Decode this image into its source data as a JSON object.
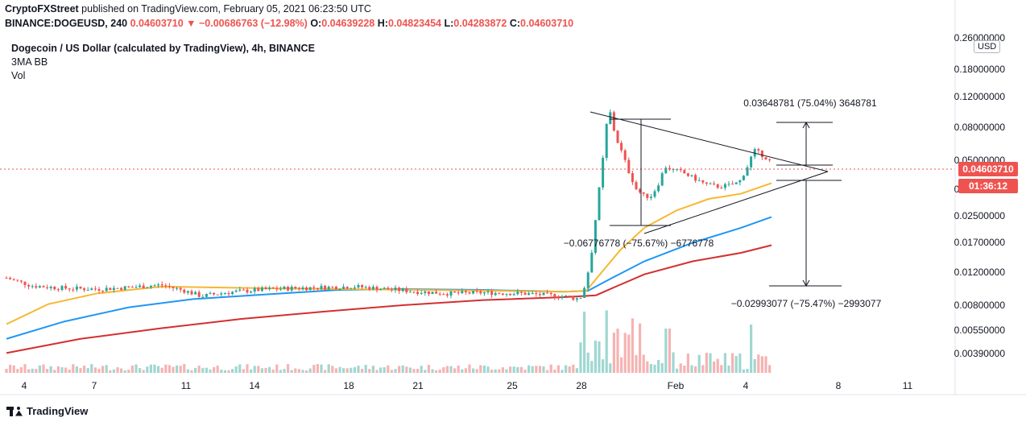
{
  "header": {
    "publisher": "CryptoFXStreet",
    "published_text": "published on TradingView.com, February 05, 2021 06:23:50 UTC"
  },
  "ohlc": {
    "symbol": "BINANCE:DOGEUSD, 240",
    "last": "0.04603710",
    "change": "▼ −0.00686763 (−12.98%)",
    "open_label": "O:",
    "open": "0.04639228",
    "high_label": "H:",
    "high": "0.04823454",
    "low_label": "L:",
    "low": "0.04283872",
    "close_label": "C:",
    "close": "0.04603710"
  },
  "legend": {
    "title": "Dogecoin / US Dollar (calculated by TradingView), 4h, BINANCE",
    "indicator": "3MA BB",
    "volume": "Vol"
  },
  "currency_badge": "USD",
  "last_price_tag": "0.04603710",
  "countdown_tag": "01:36:12",
  "branding": "TradingView",
  "colors": {
    "up": "#26a69a",
    "down": "#ef5350",
    "ma_fast": "#f7b731",
    "ma_mid": "#2196f3",
    "ma_slow": "#d32f2f",
    "last_price": "#ef5350",
    "countdown": "#ef5350",
    "drawing": "#131722"
  },
  "chart_data": {
    "type": "candlestick",
    "title": "Dogecoin / US Dollar (calculated by TradingView), 4h, BINANCE",
    "x_tick_labels": [
      "4",
      "7",
      "11",
      "14",
      "18",
      "21",
      "25",
      "28",
      "Feb",
      "4",
      "8",
      "11"
    ],
    "y_scale": "log",
    "y_tick_labels": [
      "0.26000000",
      "0.18000000",
      "0.12000000",
      "0.08000000",
      "0.05000000",
      "0.03500000",
      "0.02500000",
      "0.01700000",
      "0.01200000",
      "0.00800000",
      "0.00550000",
      "0.00390000"
    ],
    "y_ticks": [
      0.26,
      0.18,
      0.12,
      0.08,
      0.05,
      0.035,
      0.025,
      0.017,
      0.012,
      0.008,
      0.0055,
      0.0039
    ],
    "y_range": [
      0.0031,
      0.28
    ],
    "annotations": [
      {
        "text": "0.03648781 (75.04%) 3648781"
      },
      {
        "text": "−0.06776778 (−75.67%) −6776778"
      },
      {
        "text": "−0.02993077 (−75.47%) −2993077"
      }
    ],
    "pattern": "symmetrical triangle",
    "last_price": 0.0460371
  }
}
